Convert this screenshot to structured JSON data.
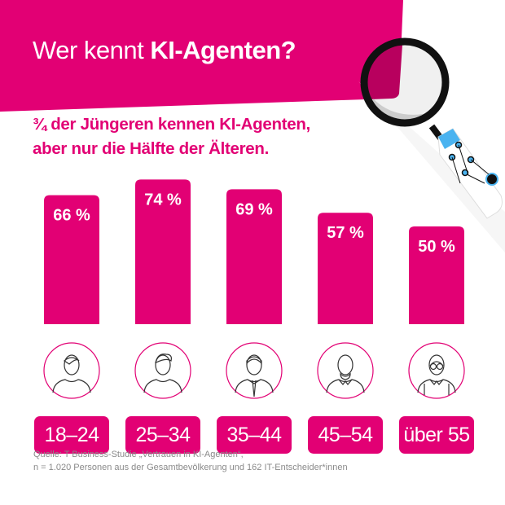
{
  "header": {
    "title_regular": "Wer kennt ",
    "title_bold": "KI-Agenten?"
  },
  "subtitle": [
    "¾ der Jüngeren kennen KI-Agenten,",
    "aber nur die Hälfte der Älteren."
  ],
  "colors": {
    "brand": "#e20074",
    "icon_stroke": "#333333",
    "source_text": "#8a8a8a"
  },
  "chart_data": {
    "type": "bar",
    "categories": [
      "18–24",
      "25–34",
      "35–44",
      "45–54",
      "über 55"
    ],
    "values": [
      66,
      74,
      69,
      57,
      50
    ],
    "data_labels": [
      "66 %",
      "74 %",
      "69 %",
      "57 %",
      "50 %"
    ],
    "title": "Wer kennt KI-Agenten?",
    "ylim": [
      0,
      100
    ],
    "grid": false,
    "icons": [
      "young-person-icon",
      "young-man-icon",
      "businessman-tie-icon",
      "bearded-man-icon",
      "elderly-man-glasses-icon"
    ]
  },
  "source": [
    "Quelle: T Business-Studie „Vertrauen in KI-Agenten“,",
    "n = 1.020 Personen aus der Gesamtbevölkerung und 162 IT-Entscheider*innen"
  ]
}
